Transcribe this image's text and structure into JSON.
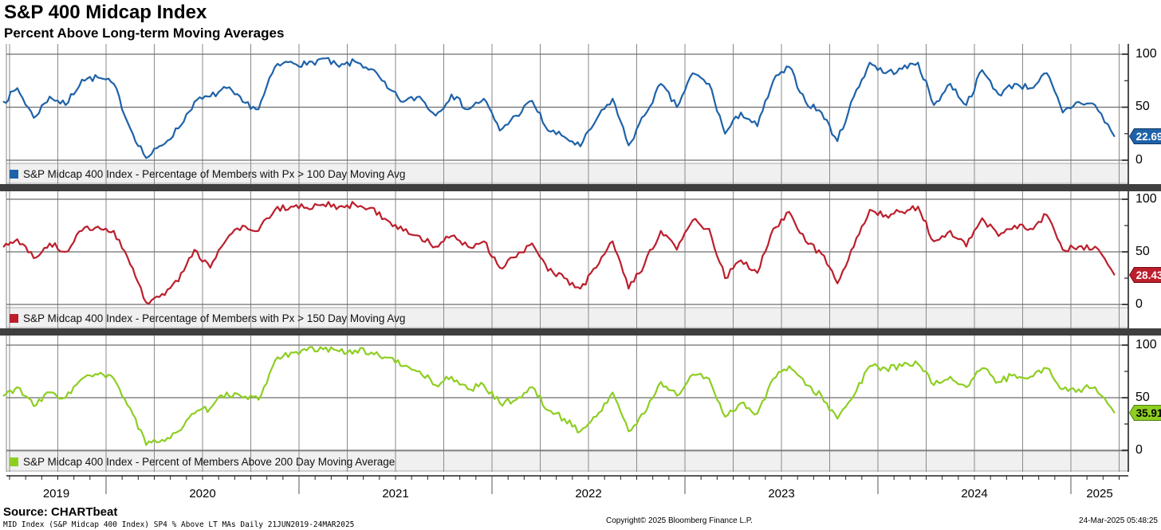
{
  "header": {
    "title": "S&P 400 Midcap Index",
    "subtitle": "Percent Above Long-term Moving Averages"
  },
  "axis": {
    "y_tick_labels": [
      "100",
      "50",
      "0"
    ],
    "y_minor_ticks": [
      25,
      75
    ],
    "years": [
      "2019",
      "2020",
      "2021",
      "2022",
      "2023",
      "2024",
      "2025"
    ]
  },
  "footer": {
    "source": "Source: CHARTbeat",
    "details": "MID Index (S&P Midcap 400 Index) SP4 % Above LT MAs  Daily 21JUN2019-24MAR2025",
    "copyright": "Copyright© 2025 Bloomberg Finance L.P.",
    "timestamp": "24-Mar-2025 05:48:25"
  },
  "colors": {
    "grid": "#8a8a8a",
    "axis": "#222222",
    "separator": "#3f3f3f",
    "legend_bg": "#f0f0f0",
    "legend_border": "#aaaaaa"
  },
  "chart_data": {
    "type": "line",
    "title": "S&P 400 Midcap Index - Percent Above Long-term Moving Averages",
    "x_label": "Date (21JUN2019 - 24MAR2025)",
    "ylim": [
      0,
      100
    ],
    "y_ticks": [
      0,
      50,
      100
    ],
    "x_range": [
      2019.4835,
      2025.298
    ],
    "year_boundaries": [
      2020,
      2021,
      2022,
      2023,
      2024,
      2025
    ],
    "grid": true,
    "x_years": [
      2019.47,
      2019.54,
      2019.625,
      2019.708,
      2019.79,
      2019.875,
      2019.958,
      2020.04,
      2020.125,
      2020.208,
      2020.29,
      2020.375,
      2020.458,
      2020.54,
      2020.625,
      2020.708,
      2020.79,
      2020.875,
      2020.958,
      2021.04,
      2021.125,
      2021.208,
      2021.29,
      2021.375,
      2021.458,
      2021.54,
      2021.625,
      2021.708,
      2021.79,
      2021.875,
      2021.958,
      2022.04,
      2022.125,
      2022.208,
      2022.29,
      2022.375,
      2022.458,
      2022.54,
      2022.625,
      2022.708,
      2022.79,
      2022.875,
      2022.958,
      2023.04,
      2023.125,
      2023.208,
      2023.29,
      2023.375,
      2023.458,
      2023.54,
      2023.625,
      2023.708,
      2023.79,
      2023.875,
      2023.958,
      2024.04,
      2024.125,
      2024.208,
      2024.29,
      2024.375,
      2024.458,
      2024.54,
      2024.625,
      2024.708,
      2024.79,
      2024.875,
      2024.958,
      2025.04,
      2025.125,
      2025.225
    ],
    "series": [
      {
        "name": "S&P Midcap 400 Index - Percentage of Members with Px > 100 Day Moving Avg",
        "color": "#1e62a9",
        "badge_bg": "#1e62a9",
        "badge_border": "#12395f",
        "badge_text_color": "#ffffff",
        "last": 22.69,
        "last_label": "22.69",
        "values": [
          55,
          68,
          40,
          60,
          52,
          76,
          78,
          72,
          30,
          2,
          14,
          30,
          55,
          60,
          68,
          55,
          48,
          88,
          93,
          90,
          96,
          88,
          93,
          86,
          68,
          55,
          60,
          42,
          62,
          48,
          58,
          28,
          42,
          56,
          28,
          22,
          13,
          38,
          58,
          14,
          42,
          72,
          50,
          82,
          72,
          25,
          45,
          32,
          75,
          88,
          55,
          45,
          18,
          60,
          92,
          82,
          86,
          92,
          52,
          72,
          52,
          85,
          62,
          72,
          68,
          82,
          45,
          55,
          52,
          22.69
        ]
      },
      {
        "name": "S&P Midcap 400 Index - Percentage of Members with Px > 150 Day Moving Avg",
        "color": "#bc1e2c",
        "badge_bg": "#bc1e2c",
        "badge_border": "#6d0f16",
        "badge_text_color": "#ffffff",
        "last": 28.43,
        "last_label": "28.43",
        "values": [
          55,
          62,
          44,
          58,
          50,
          70,
          74,
          70,
          38,
          2,
          10,
          22,
          52,
          35,
          62,
          75,
          70,
          90,
          93,
          92,
          95,
          93,
          95,
          92,
          80,
          70,
          65,
          55,
          65,
          55,
          60,
          35,
          45,
          58,
          32,
          25,
          15,
          35,
          60,
          15,
          38,
          70,
          52,
          80,
          72,
          25,
          42,
          30,
          72,
          88,
          60,
          48,
          20,
          55,
          90,
          85,
          88,
          93,
          60,
          70,
          55,
          82,
          65,
          75,
          72,
          85,
          52,
          55,
          55,
          28.43
        ]
      },
      {
        "name": "S&P Midcap 400 Index - Percent of Members Above 200 Day Moving Average",
        "color": "#8dce21",
        "badge_bg": "#8dce21",
        "badge_border": "#4c7d10",
        "badge_text_color": "#000000",
        "last": 35.91,
        "last_label": "35.91",
        "values": [
          52,
          60,
          42,
          55,
          50,
          68,
          72,
          68,
          40,
          5,
          10,
          18,
          35,
          40,
          55,
          50,
          48,
          85,
          93,
          95,
          96,
          94,
          95,
          93,
          88,
          80,
          75,
          62,
          70,
          58,
          62,
          45,
          48,
          60,
          38,
          30,
          18,
          32,
          55,
          18,
          35,
          65,
          52,
          72,
          68,
          32,
          45,
          35,
          68,
          80,
          62,
          52,
          30,
          52,
          80,
          78,
          80,
          82,
          62,
          70,
          60,
          78,
          65,
          72,
          70,
          78,
          58,
          58,
          60,
          35.91
        ]
      }
    ]
  }
}
